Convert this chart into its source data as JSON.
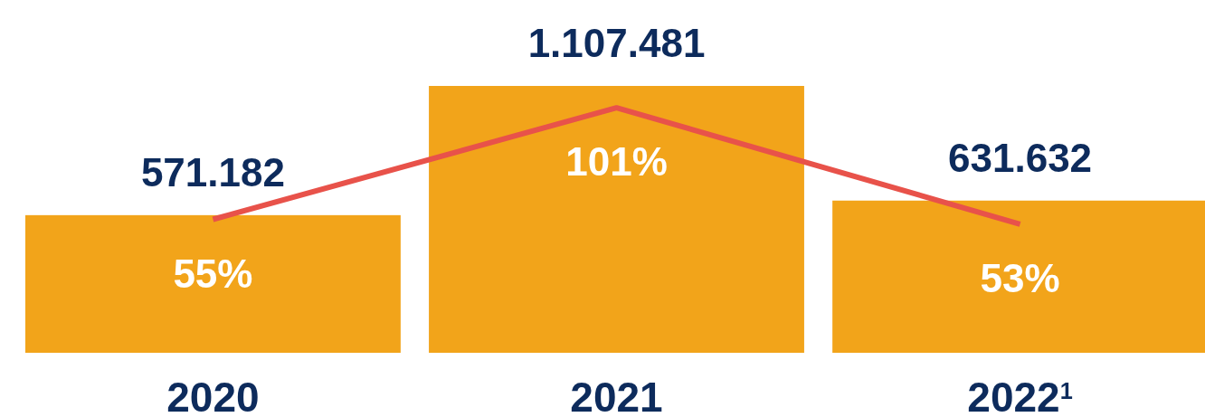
{
  "chart_data": {
    "type": "bar",
    "categories": [
      "2020",
      "2021",
      "2022$^{1}$"
    ],
    "ylim": [
      0,
      1107481
    ],
    "y2lim": [
      0,
      110
    ],
    "series": [
      {
        "color": "#f2a41a",
        "values": [
          571182,
          1107481,
          631632
        ],
        "value_labels": [
          "571.182",
          "1.107.481",
          "631.632"
        ]
      },
      {
        "type": "line",
        "axis": "y2",
        "color": "#e8524a",
        "values": [
          55,
          101,
          53
        ],
        "value_labels": [
          "55%",
          "101%",
          "53%"
        ]
      }
    ]
  }
}
